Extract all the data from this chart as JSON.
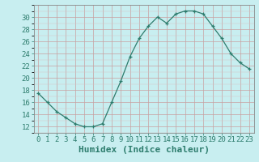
{
  "x": [
    0,
    1,
    2,
    3,
    4,
    5,
    6,
    7,
    8,
    9,
    10,
    11,
    12,
    13,
    14,
    15,
    16,
    17,
    18,
    19,
    20,
    21,
    22,
    23
  ],
  "y": [
    17.5,
    16.0,
    14.5,
    13.5,
    12.5,
    12.0,
    12.0,
    12.5,
    16.0,
    19.5,
    23.5,
    26.5,
    28.5,
    30.0,
    29.0,
    30.5,
    31.0,
    31.0,
    30.5,
    28.5,
    26.5,
    24.0,
    22.5,
    21.5
  ],
  "line_color": "#2e7d6e",
  "marker": "+",
  "marker_size": 3,
  "bg_color": "#c8eef0",
  "grid_color_major": "#b0b0b0",
  "grid_color_minor": "#d8d8d8",
  "xlabel": "Humidex (Indice chaleur)",
  "xlabel_fontsize": 8,
  "ylim": [
    11,
    32
  ],
  "xlim": [
    -0.5,
    23.5
  ],
  "yticks": [
    12,
    14,
    16,
    18,
    20,
    22,
    24,
    26,
    28,
    30
  ],
  "xticks": [
    0,
    1,
    2,
    3,
    4,
    5,
    6,
    7,
    8,
    9,
    10,
    11,
    12,
    13,
    14,
    15,
    16,
    17,
    18,
    19,
    20,
    21,
    22,
    23
  ],
  "tick_fontsize": 6.5
}
